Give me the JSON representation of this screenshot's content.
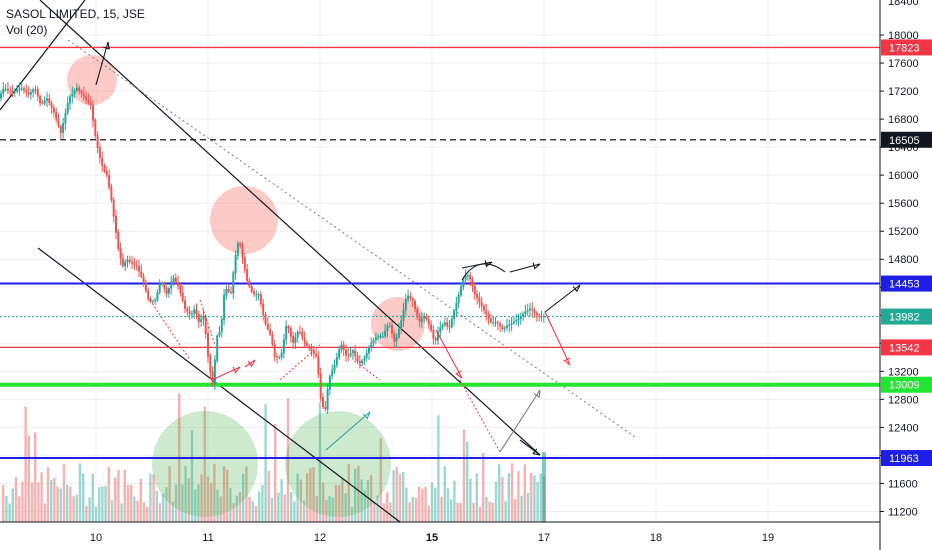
{
  "header": {
    "symbol": "SASOL LIMITED, 15, JSE",
    "volume_label": "Vol (20)"
  },
  "chart_data": {
    "type": "candlestick",
    "title": "SASOL LIMITED, 15, JSE",
    "x_tick_labels": [
      "10",
      "11",
      "12",
      "15",
      "17",
      "18",
      "19"
    ],
    "x_tick_bold": "15",
    "y_tick_labels": [
      18000,
      17600,
      17200,
      16800,
      16400,
      16000,
      15600,
      15200,
      14800,
      14400,
      14000,
      13600,
      13200,
      12800,
      12400,
      12000,
      11600,
      11200
    ],
    "y_top_partial_label": "18400",
    "ylim": [
      11050,
      18500
    ],
    "grid": true,
    "levels": [
      {
        "name": "resistance",
        "value": 17823,
        "label": "17823",
        "color": "#f23645",
        "style": "solid"
      },
      {
        "name": "dashed",
        "value": 16505,
        "label": "16505",
        "color": "#131722",
        "style": "dashed"
      },
      {
        "name": "blue-upper",
        "value": 14453,
        "label": "14453",
        "color": "#1e1ee6",
        "style": "solid"
      },
      {
        "name": "last-price",
        "value": 13982,
        "label": "13982",
        "color": "#22ab94",
        "style": "dotted"
      },
      {
        "name": "red-support",
        "value": 13542,
        "label": "13542",
        "color": "#f23645",
        "style": "solid"
      },
      {
        "name": "green-support",
        "value": 13009,
        "label": "13009",
        "color": "#21e632",
        "style": "solid"
      },
      {
        "name": "blue-lower",
        "value": 11963,
        "label": "11963",
        "color": "#1e1ee6",
        "style": "solid"
      }
    ],
    "price_path": [
      [
        0,
        17100
      ],
      [
        5,
        17250
      ],
      [
        10,
        17200
      ],
      [
        15,
        17180
      ],
      [
        22,
        17250
      ],
      [
        30,
        17150
      ],
      [
        36,
        17250
      ],
      [
        42,
        17000
      ],
      [
        48,
        17100
      ],
      [
        55,
        16900
      ],
      [
        62,
        16600
      ],
      [
        70,
        17100
      ],
      [
        78,
        17250
      ],
      [
        86,
        17100
      ],
      [
        92,
        17000
      ],
      [
        96,
        16600
      ],
      [
        100,
        16300
      ],
      [
        104,
        16100
      ],
      [
        108,
        16000
      ],
      [
        112,
        15700
      ],
      [
        116,
        15300
      ],
      [
        120,
        14900
      ],
      [
        124,
        14700
      ],
      [
        128,
        14800
      ],
      [
        132,
        14750
      ],
      [
        138,
        14700
      ],
      [
        144,
        14500
      ],
      [
        150,
        14200
      ],
      [
        156,
        14200
      ],
      [
        162,
        14500
      ],
      [
        168,
        14300
      ],
      [
        174,
        14550
      ],
      [
        180,
        14400
      ],
      [
        186,
        14100
      ],
      [
        192,
        14000
      ],
      [
        196,
        14100
      ],
      [
        200,
        13900
      ],
      [
        205,
        14000
      ],
      [
        210,
        13300
      ],
      [
        214,
        13000
      ],
      [
        218,
        13700
      ],
      [
        222,
        13800
      ],
      [
        226,
        14400
      ],
      [
        232,
        14300
      ],
      [
        236,
        14800
      ],
      [
        240,
        15100
      ],
      [
        244,
        14800
      ],
      [
        248,
        14500
      ],
      [
        254,
        14300
      ],
      [
        260,
        14300
      ],
      [
        266,
        13900
      ],
      [
        272,
        13700
      ],
      [
        276,
        13400
      ],
      [
        282,
        13400
      ],
      [
        288,
        13900
      ],
      [
        294,
        13600
      ],
      [
        300,
        13800
      ],
      [
        306,
        13600
      ],
      [
        312,
        13500
      ],
      [
        318,
        13400
      ],
      [
        322,
        12800
      ],
      [
        326,
        12600
      ],
      [
        330,
        13100
      ],
      [
        336,
        13300
      ],
      [
        342,
        13600
      ],
      [
        348,
        13400
      ],
      [
        354,
        13500
      ],
      [
        360,
        13300
      ],
      [
        366,
        13400
      ],
      [
        372,
        13600
      ],
      [
        378,
        13700
      ],
      [
        384,
        13700
      ],
      [
        390,
        13900
      ],
      [
        396,
        13600
      ],
      [
        402,
        13900
      ],
      [
        408,
        14300
      ],
      [
        414,
        14200
      ],
      [
        420,
        13900
      ],
      [
        426,
        14000
      ],
      [
        432,
        13800
      ],
      [
        436,
        13600
      ],
      [
        440,
        13800
      ],
      [
        446,
        13900
      ],
      [
        450,
        13800
      ],
      [
        456,
        14100
      ],
      [
        460,
        14300
      ],
      [
        464,
        14500
      ],
      [
        468,
        14600
      ],
      [
        472,
        14500
      ],
      [
        476,
        14300
      ],
      [
        480,
        14200
      ],
      [
        484,
        14100
      ],
      [
        488,
        14000
      ],
      [
        492,
        13900
      ],
      [
        498,
        13900
      ],
      [
        504,
        13800
      ],
      [
        508,
        13850
      ],
      [
        514,
        13900
      ],
      [
        520,
        13950
      ],
      [
        526,
        14050
      ],
      [
        532,
        14100
      ],
      [
        538,
        14000
      ],
      [
        542,
        13982
      ]
    ]
  }
}
